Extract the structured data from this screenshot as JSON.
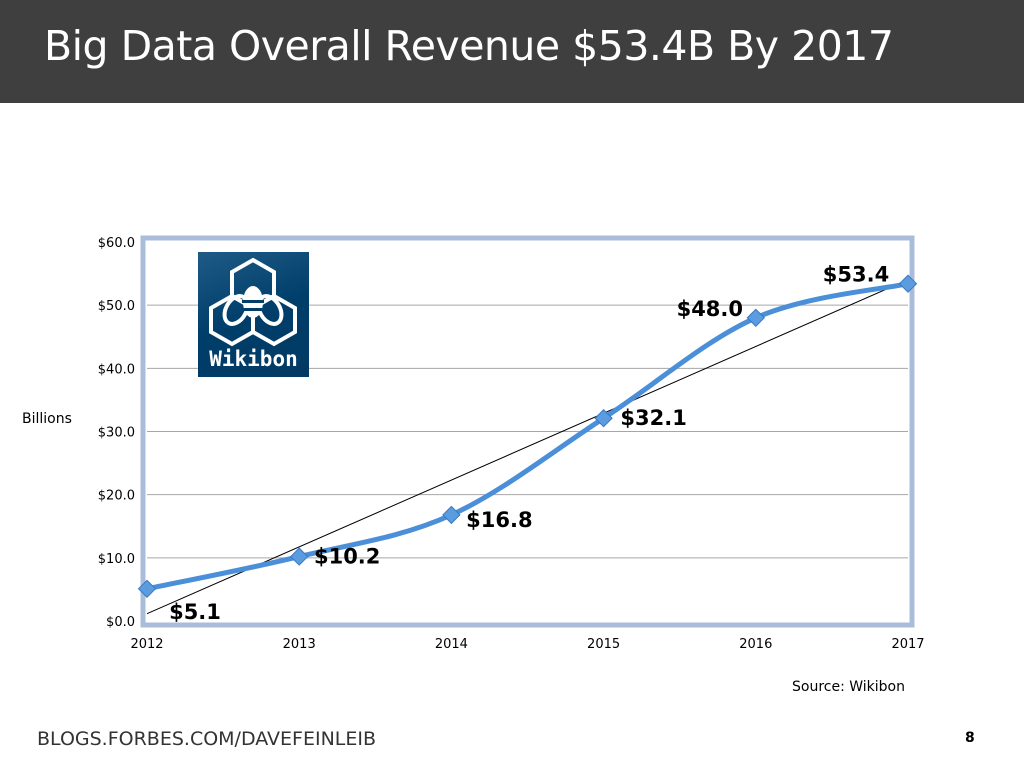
{
  "slide": {
    "title": "Big Data Overall Revenue $53.4B By 2017",
    "footer": "BLOGS.FORBES.COM/DAVEFEINLEIB",
    "page_number": "8",
    "source": "Source: Wikibon",
    "logo_text": "Wikibon"
  },
  "chart_data": {
    "type": "line",
    "ylabel": "Billions",
    "categories": [
      "2012",
      "2013",
      "2014",
      "2015",
      "2016",
      "2017"
    ],
    "values": [
      5.1,
      10.2,
      16.8,
      32.1,
      48.0,
      53.4
    ],
    "data_labels": [
      "$5.1",
      "$10.2",
      "$16.8",
      "$32.1",
      "$48.0",
      "$53.4"
    ],
    "yticks": [
      "$0.0",
      "$10.0",
      "$20.0",
      "$30.0",
      "$40.0",
      "$50.0",
      "$60.0"
    ],
    "ylim": [
      0,
      60
    ],
    "grid": true,
    "smooth": true,
    "trendline": "linear",
    "colors": {
      "series": "#4a8fd8",
      "trendline": "#000000",
      "grid": "#a6a6a6",
      "frame": "#6f8fbf"
    }
  }
}
